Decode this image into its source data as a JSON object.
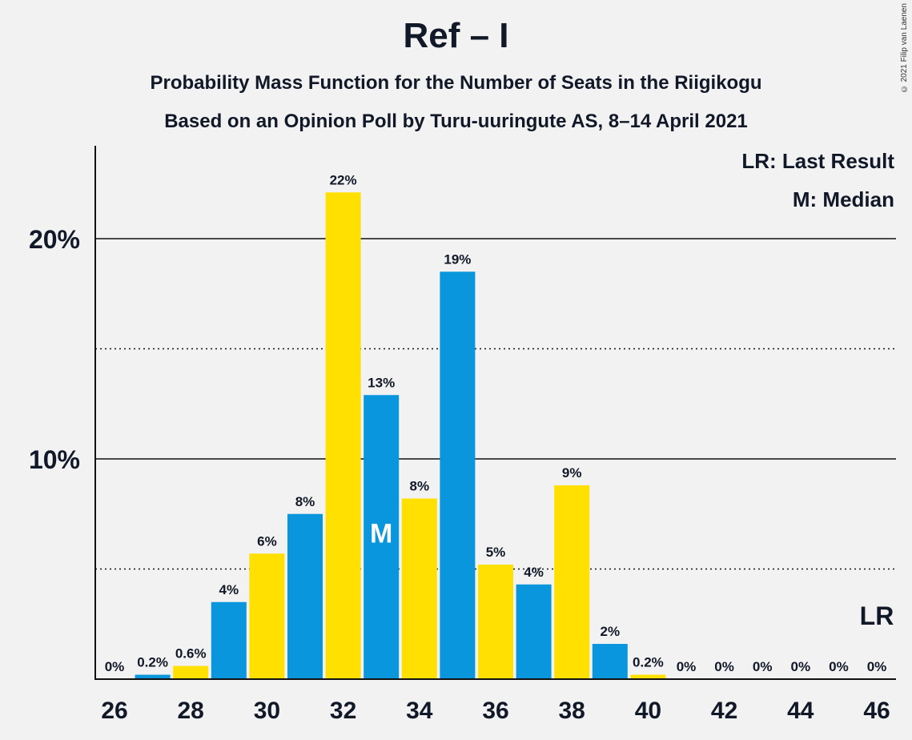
{
  "chart_data": {
    "type": "bar",
    "title": "Ref – I",
    "subtitle": "Probability Mass Function for the Number of Seats in the Riigikogu",
    "subtitle2": "Based on an Opinion Poll by Turu-uuringute AS, 8–14 April 2021",
    "copyright": "© 2021 Filip van Laenen",
    "legend": [
      "LR: Last Result",
      "M: Median"
    ],
    "legend_placement": "top-right",
    "median_seat": 33,
    "median_marker": "M",
    "last_result_marker": "LR",
    "last_result_seat": 46,
    "ylim": [
      0,
      24
    ],
    "y_ticks": [
      {
        "value": 10,
        "label": "10%"
      },
      {
        "value": 20,
        "label": "20%"
      }
    ],
    "y_dotted": [
      5,
      15
    ],
    "x_ticks": [
      26,
      28,
      30,
      32,
      34,
      36,
      38,
      40,
      42,
      44,
      46
    ],
    "colors": {
      "blue": "#0a96dc",
      "yellow": "#ffe000"
    },
    "bars": [
      {
        "seats": 26,
        "value": 0,
        "label": "0%",
        "color": "blue"
      },
      {
        "seats": 27,
        "value": 0.2,
        "label": "0.2%",
        "color": "blue"
      },
      {
        "seats": 28,
        "value": 0.6,
        "label": "0.6%",
        "color": "yellow"
      },
      {
        "seats": 29,
        "value": 3.5,
        "label": "4%",
        "color": "blue"
      },
      {
        "seats": 30,
        "value": 5.7,
        "label": "6%",
        "color": "yellow"
      },
      {
        "seats": 31,
        "value": 7.5,
        "label": "8%",
        "color": "blue"
      },
      {
        "seats": 32,
        "value": 22.1,
        "label": "22%",
        "color": "yellow"
      },
      {
        "seats": 33,
        "value": 12.9,
        "label": "13%",
        "color": "blue"
      },
      {
        "seats": 34,
        "value": 8.2,
        "label": "8%",
        "color": "yellow"
      },
      {
        "seats": 35,
        "value": 18.5,
        "label": "19%",
        "color": "blue"
      },
      {
        "seats": 36,
        "value": 5.2,
        "label": "5%",
        "color": "yellow"
      },
      {
        "seats": 37,
        "value": 4.3,
        "label": "4%",
        "color": "blue"
      },
      {
        "seats": 38,
        "value": 8.8,
        "label": "9%",
        "color": "yellow"
      },
      {
        "seats": 39,
        "value": 1.6,
        "label": "2%",
        "color": "blue"
      },
      {
        "seats": 40,
        "value": 0.2,
        "label": "0.2%",
        "color": "yellow"
      },
      {
        "seats": 41,
        "value": 0,
        "label": "0%",
        "color": "blue"
      },
      {
        "seats": 42,
        "value": 0,
        "label": "0%",
        "color": "yellow"
      },
      {
        "seats": 43,
        "value": 0,
        "label": "0%",
        "color": "blue"
      },
      {
        "seats": 44,
        "value": 0,
        "label": "0%",
        "color": "yellow"
      },
      {
        "seats": 45,
        "value": 0,
        "label": "0%",
        "color": "blue"
      },
      {
        "seats": 46,
        "value": 0,
        "label": "0%",
        "color": "yellow"
      }
    ]
  }
}
